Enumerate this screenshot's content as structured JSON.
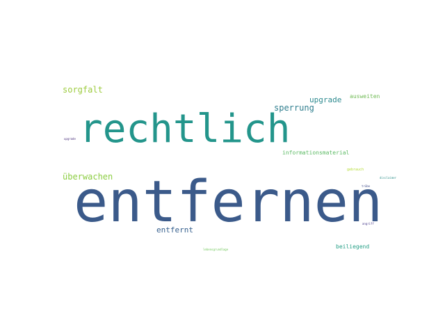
{
  "wordcloud": {
    "words": [
      {
        "text": "entfernen",
        "color": "#3b5a8a"
      },
      {
        "text": "rechtlich",
        "color": "#23958b"
      },
      {
        "text": "sorgfalt",
        "color": "#9ccb3d"
      },
      {
        "text": "sperrung",
        "color": "#2f7e8e"
      },
      {
        "text": "upgrade",
        "color": "#2d8a8f"
      },
      {
        "text": "ausweiten",
        "color": "#6fba54"
      },
      {
        "text": "überwachen",
        "color": "#8ccd42"
      },
      {
        "text": "entfernt",
        "color": "#355f8d"
      },
      {
        "text": "informationsmaterial",
        "color": "#5cba64"
      },
      {
        "text": "beiliegend",
        "color": "#27a087"
      },
      {
        "text": "gebrauch",
        "color": "#b5dc34"
      },
      {
        "text": "disclaimer",
        "color": "#31918c"
      },
      {
        "text": "trübe",
        "color": "#3e4a89"
      },
      {
        "text": "angriff",
        "color": "#46388a"
      },
      {
        "text": "upgrade",
        "color": "#472c7a"
      },
      {
        "text": "lebensgrundlage",
        "color": "#6cc555"
      }
    ]
  }
}
